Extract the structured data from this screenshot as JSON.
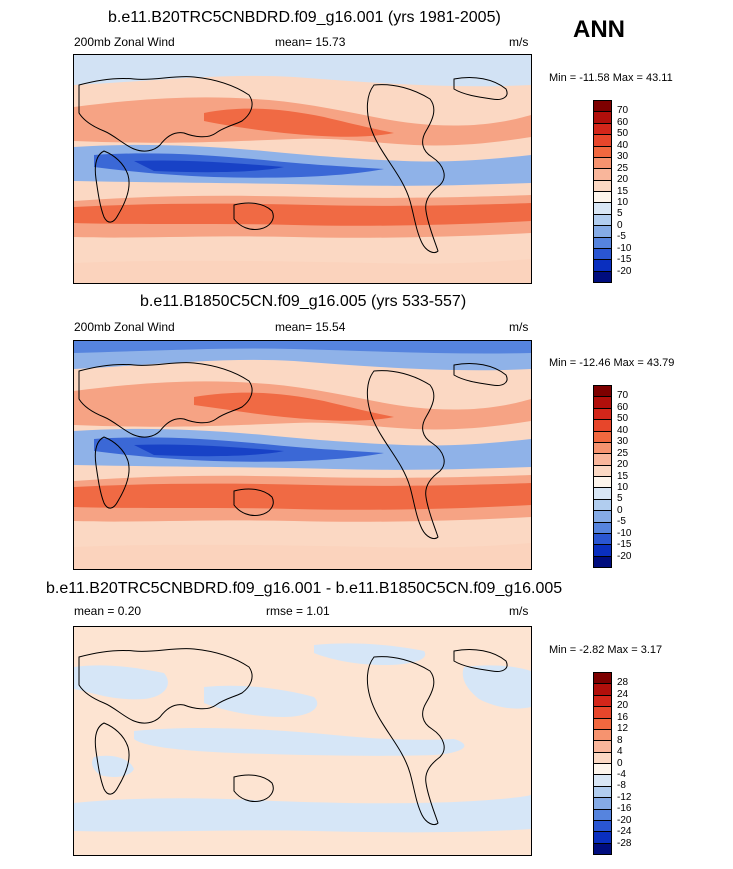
{
  "season": "ANN",
  "panels": [
    {
      "title": "b.e11.B20TRC5CNBDRD.f09_g16.001 (yrs 1981-2005)",
      "left_label": "200mb Zonal Wind",
      "center_label": "mean=  15.73",
      "units": "m/s",
      "minmax": "Min = -11.58 Max =  43.11",
      "colorbar_ticks": [
        "70",
        "60",
        "50",
        "40",
        "30",
        "25",
        "20",
        "15",
        "10",
        "5",
        "0",
        "-5",
        "-10",
        "-15",
        "-20"
      ],
      "colorbar_colors": [
        "#7d0000",
        "#b10f0b",
        "#d3261a",
        "#e7462b",
        "#f1683f",
        "#f6936f",
        "#f9b69b",
        "#fbd8c3",
        "#fdf5ec",
        "#d8e6f5",
        "#b1cdef",
        "#85abe6",
        "#5684de",
        "#2a56d2",
        "#0a2fbf",
        "#000d7e"
      ]
    },
    {
      "title": "b.e11.B1850C5CN.f09_g16.005 (yrs 533-557)",
      "left_label": "200mb Zonal Wind",
      "center_label": "mean=  15.54",
      "units": "m/s",
      "minmax": "Min = -12.46 Max =  43.79",
      "colorbar_ticks": [
        "70",
        "60",
        "50",
        "40",
        "30",
        "25",
        "20",
        "15",
        "10",
        "5",
        "0",
        "-5",
        "-10",
        "-15",
        "-20"
      ],
      "colorbar_colors": [
        "#7d0000",
        "#b10f0b",
        "#d3261a",
        "#e7462b",
        "#f1683f",
        "#f6936f",
        "#f9b69b",
        "#fbd8c3",
        "#fdf5ec",
        "#d8e6f5",
        "#b1cdef",
        "#85abe6",
        "#5684de",
        "#2a56d2",
        "#0a2fbf",
        "#000d7e"
      ]
    },
    {
      "title": "b.e11.B20TRC5CNBDRD.f09_g16.001 - b.e11.B1850C5CN.f09_g16.005",
      "left_label": "mean =  0.20",
      "center_label": "rmse =  1.01",
      "units": "m/s",
      "minmax": "Min =  -2.82 Max =  3.17",
      "colorbar_ticks": [
        "28",
        "24",
        "20",
        "16",
        "12",
        "8",
        "4",
        "0",
        "-4",
        "-8",
        "-12",
        "-16",
        "-20",
        "-24",
        "-28"
      ],
      "colorbar_colors": [
        "#7d0000",
        "#b10f0b",
        "#d3261a",
        "#e7462b",
        "#f1683f",
        "#f6936f",
        "#f9b69b",
        "#fbd8c3",
        "#fdf5ec",
        "#d8e6f5",
        "#b1cdef",
        "#85abe6",
        "#5684de",
        "#2a56d2",
        "#0a2fbf",
        "#000d7e"
      ]
    }
  ],
  "map_colors": {
    "strong_pos": "#f06a44",
    "pos": "#f6a384",
    "weak_pos": "#fbd3bd",
    "neutral": "#fde9db",
    "weak_neg": "#d2e2f4",
    "neg": "#8fb2e8",
    "strong_neg": "#3b68d6",
    "very_neg": "#1842c6",
    "diff_pos": "#fde4d2",
    "diff_neg": "#d6e6f7"
  }
}
